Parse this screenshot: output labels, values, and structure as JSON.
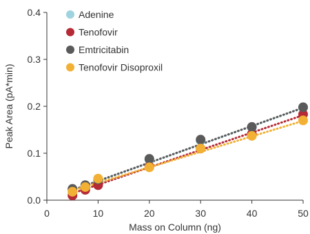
{
  "chart_data": {
    "type": "scatter",
    "title": "",
    "xlabel": "Mass on Column (ng)",
    "ylabel": "Peak Area (pA*min)",
    "xlim": [
      0,
      50
    ],
    "ylim": [
      0,
      0.4
    ],
    "xticks": [
      0,
      10,
      20,
      30,
      40,
      50
    ],
    "yticks": [
      0.0,
      0.1,
      0.2,
      0.3,
      0.4
    ],
    "xtick_labels": [
      "0",
      "10",
      "20",
      "30",
      "40",
      "50"
    ],
    "ytick_labels": [
      "0.0",
      "0.1",
      "0.2",
      "0.3",
      "0.4"
    ],
    "grid": false,
    "legend_position": "top-left",
    "trendlines": "dotted linear fit per series",
    "series": [
      {
        "name": "Adenine",
        "color": "#9fd3df",
        "x": [
          5,
          7.5,
          10,
          20,
          30,
          40,
          50
        ],
        "y": [
          0.022,
          0.03,
          0.042,
          0.086,
          0.127,
          0.155,
          0.197
        ],
        "fit": [
          0.0015,
          0.0039
        ]
      },
      {
        "name": "Tenofovir",
        "color": "#b52a35",
        "x": [
          5,
          7.5,
          10,
          20,
          30,
          40,
          50
        ],
        "y": [
          0.01,
          0.022,
          0.032,
          0.072,
          0.11,
          0.141,
          0.183
        ],
        "fit": [
          -0.004,
          0.0037
        ]
      },
      {
        "name": "Emtricitabin",
        "color": "#5a5a5a",
        "x": [
          5,
          7.5,
          10,
          20,
          30,
          40,
          50
        ],
        "y": [
          0.024,
          0.032,
          0.044,
          0.088,
          0.129,
          0.156,
          0.198
        ],
        "fit": [
          0.002,
          0.0039
        ]
      },
      {
        "name": "Tenofovir Disoproxil",
        "color": "#f2b134",
        "x": [
          5,
          7.5,
          10,
          20,
          30,
          40,
          50
        ],
        "y": [
          0.018,
          0.028,
          0.046,
          0.07,
          0.11,
          0.137,
          0.17
        ],
        "fit": [
          0.004,
          0.0033
        ]
      }
    ]
  }
}
